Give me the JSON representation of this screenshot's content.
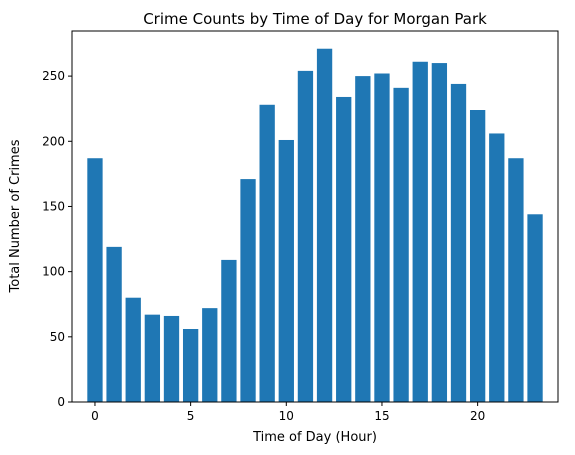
{
  "chart_data": {
    "type": "bar",
    "title": "Crime Counts by Time of Day for Morgan Park",
    "xlabel": "Time of Day (Hour)",
    "ylabel": "Total Number of Crimes",
    "x": [
      0,
      1,
      2,
      3,
      4,
      5,
      6,
      7,
      8,
      9,
      10,
      11,
      12,
      13,
      14,
      15,
      16,
      17,
      18,
      19,
      20,
      21,
      22,
      23
    ],
    "values": [
      187,
      119,
      80,
      67,
      66,
      56,
      72,
      109,
      171,
      228,
      201,
      254,
      271,
      234,
      250,
      252,
      241,
      261,
      260,
      244,
      224,
      206,
      187,
      144
    ],
    "xlim": [
      -1.2,
      24.2
    ],
    "ylim": [
      0,
      284.6
    ],
    "xticks": [
      0,
      5,
      10,
      15,
      20
    ],
    "yticks": [
      0,
      50,
      100,
      150,
      200,
      250
    ],
    "bar_color": "#1f77b4",
    "grid": false,
    "legend": "none"
  }
}
